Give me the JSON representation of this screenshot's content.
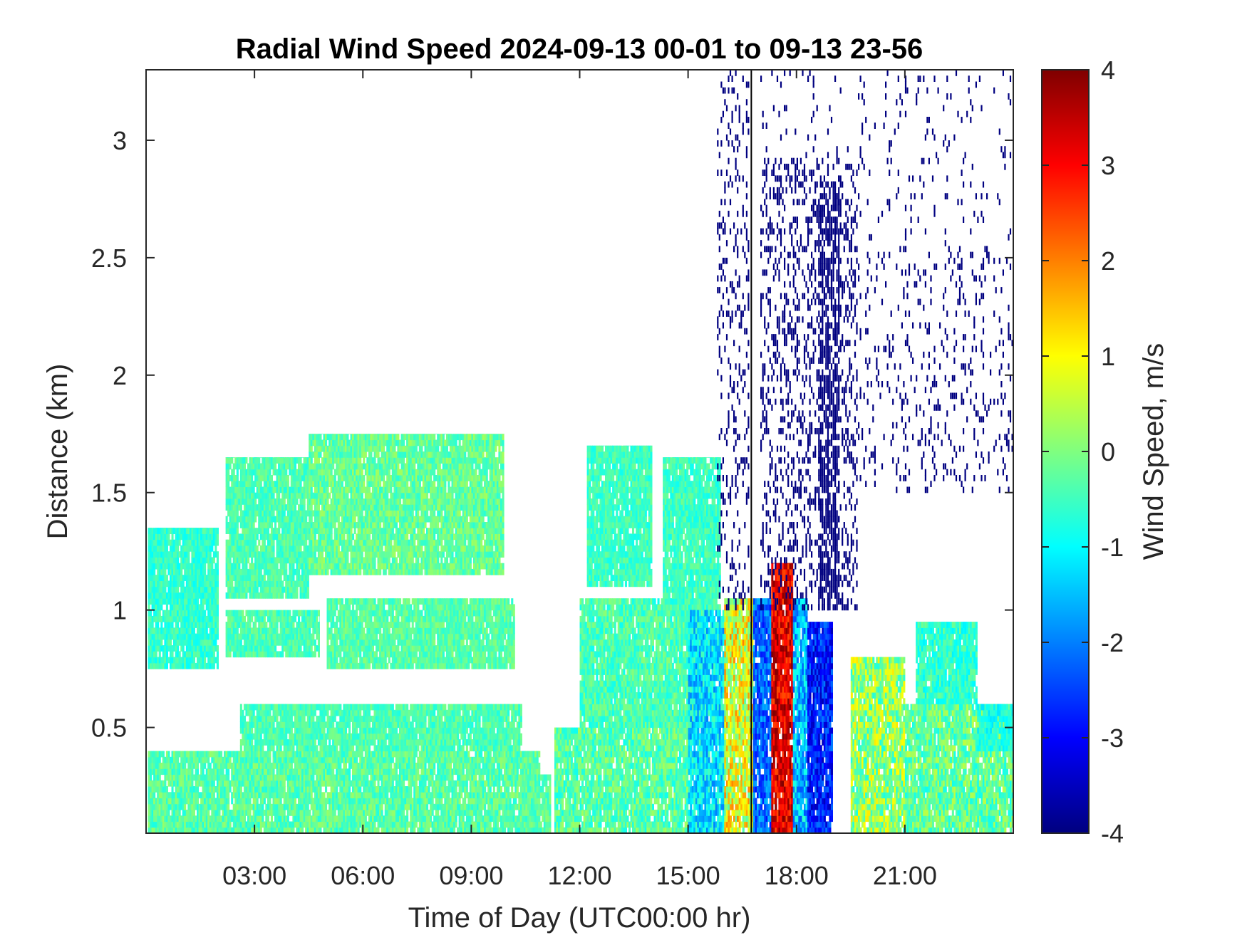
{
  "chart_data": {
    "type": "heatmap",
    "title": "Radial Wind Speed 2024-09-13 00-01 to 09-13 23-56",
    "xlabel": "Time of Day (UTC00:00 hr)",
    "ylabel": "Distance (km)",
    "colorbar_label": "Wind Speed, m/s",
    "xlim": [
      0,
      24
    ],
    "ylim": [
      0.05,
      3.3
    ],
    "clim": [
      -4,
      4
    ],
    "colormap": "jet",
    "grid": false,
    "x_ticks": [
      {
        "value": 3,
        "label": "03:00"
      },
      {
        "value": 6,
        "label": "06:00"
      },
      {
        "value": 9,
        "label": "09:00"
      },
      {
        "value": 12,
        "label": "12:00"
      },
      {
        "value": 15,
        "label": "15:00"
      },
      {
        "value": 18,
        "label": "18:00"
      },
      {
        "value": 21,
        "label": "21:00"
      }
    ],
    "y_ticks": [
      {
        "value": 0.5,
        "label": "0.5"
      },
      {
        "value": 1,
        "label": "1"
      },
      {
        "value": 1.5,
        "label": "1.5"
      },
      {
        "value": 2,
        "label": "2"
      },
      {
        "value": 2.5,
        "label": "2.5"
      },
      {
        "value": 3,
        "label": "3"
      }
    ],
    "colorbar_ticks": [
      {
        "value": 4,
        "label": "4"
      },
      {
        "value": 3,
        "label": "3"
      },
      {
        "value": 2,
        "label": "2"
      },
      {
        "value": 1,
        "label": "1"
      },
      {
        "value": 0,
        "label": "0"
      },
      {
        "value": -1,
        "label": "-1"
      },
      {
        "value": -2,
        "label": "-2"
      },
      {
        "value": -3,
        "label": "-3"
      },
      {
        "value": -4,
        "label": "-4"
      }
    ],
    "vertical_marker_time": 16.75,
    "regions": [
      {
        "t0": 0.05,
        "t1": 10.9,
        "d0": 0.05,
        "d1": 0.4,
        "v": -0.3,
        "spread": 0.5
      },
      {
        "t0": 2.6,
        "t1": 10.4,
        "d0": 0.4,
        "d1": 0.6,
        "v": -0.4,
        "spread": 0.4
      },
      {
        "t0": 10.4,
        "t1": 11.2,
        "d0": 0.05,
        "d1": 0.3,
        "v": -0.3,
        "spread": 0.4
      },
      {
        "t0": 0.05,
        "t1": 2.0,
        "d0": 0.75,
        "d1": 1.35,
        "v": -0.6,
        "spread": 0.4
      },
      {
        "t0": 2.2,
        "t1": 4.8,
        "d0": 0.8,
        "d1": 1.0,
        "v": -0.4,
        "spread": 0.4
      },
      {
        "t0": 2.2,
        "t1": 4.5,
        "d0": 1.05,
        "d1": 1.65,
        "v": -0.4,
        "spread": 0.4
      },
      {
        "t0": 4.5,
        "t1": 9.9,
        "d0": 1.15,
        "d1": 1.75,
        "v": -0.2,
        "spread": 0.5
      },
      {
        "t0": 5.0,
        "t1": 10.2,
        "d0": 0.75,
        "d1": 1.05,
        "v": -0.3,
        "spread": 0.4
      },
      {
        "t0": 11.3,
        "t1": 15.0,
        "d0": 0.05,
        "d1": 0.5,
        "v": -0.3,
        "spread": 0.6
      },
      {
        "t0": 12.0,
        "t1": 15.5,
        "d0": 0.5,
        "d1": 1.05,
        "v": -0.4,
        "spread": 0.5
      },
      {
        "t0": 12.2,
        "t1": 14.0,
        "d0": 1.1,
        "d1": 1.7,
        "v": -0.5,
        "spread": 0.4
      },
      {
        "t0": 14.3,
        "t1": 15.9,
        "d0": 1.0,
        "d1": 1.65,
        "v": -0.5,
        "spread": 0.4
      },
      {
        "t0": 15.0,
        "t1": 16.0,
        "d0": 0.05,
        "d1": 1.0,
        "v": -1.2,
        "spread": 0.8
      },
      {
        "t0": 16.0,
        "t1": 16.8,
        "d0": 0.05,
        "d1": 1.05,
        "v": 0.8,
        "spread": 1.2
      },
      {
        "t0": 16.8,
        "t1": 17.3,
        "d0": 0.05,
        "d1": 1.05,
        "v": -2.2,
        "spread": 0.7
      },
      {
        "t0": 17.3,
        "t1": 17.9,
        "d0": 0.05,
        "d1": 1.2,
        "v": 3.2,
        "spread": 0.8
      },
      {
        "t0": 17.9,
        "t1": 18.3,
        "d0": 0.05,
        "d1": 1.05,
        "v": -1.5,
        "spread": 0.9
      },
      {
        "t0": 18.3,
        "t1": 19.0,
        "d0": 0.05,
        "d1": 0.95,
        "v": -2.8,
        "spread": 0.8
      },
      {
        "t0": 19.5,
        "t1": 21.0,
        "d0": 0.05,
        "d1": 0.8,
        "v": 0.2,
        "spread": 1.0
      },
      {
        "t0": 21.0,
        "t1": 24.0,
        "d0": 0.05,
        "d1": 0.6,
        "v": -0.2,
        "spread": 0.7
      },
      {
        "t0": 21.3,
        "t1": 23.0,
        "d0": 0.6,
        "d1": 0.95,
        "v": -0.6,
        "spread": 0.5
      },
      {
        "t0": 23.0,
        "t1": 24.0,
        "d0": 0.4,
        "d1": 0.6,
        "v": -0.8,
        "spread": 0.4
      }
    ],
    "sparse_noise_regions": [
      {
        "t0": 15.8,
        "t1": 16.7,
        "d0": 1.0,
        "d1": 3.3,
        "v": -4,
        "density": 0.18
      },
      {
        "t0": 17.0,
        "t1": 19.7,
        "d0": 1.0,
        "d1": 2.9,
        "v": -4,
        "density": 0.25
      },
      {
        "t0": 18.6,
        "t1": 19.2,
        "d0": 1.0,
        "d1": 2.8,
        "v": -4,
        "density": 0.55
      },
      {
        "t0": 19.7,
        "t1": 24.0,
        "d0": 1.5,
        "d1": 2.5,
        "v": -4,
        "density": 0.12
      },
      {
        "t0": 17.0,
        "t1": 24.0,
        "d0": 2.5,
        "d1": 3.3,
        "v": -4,
        "density": 0.05
      }
    ]
  }
}
